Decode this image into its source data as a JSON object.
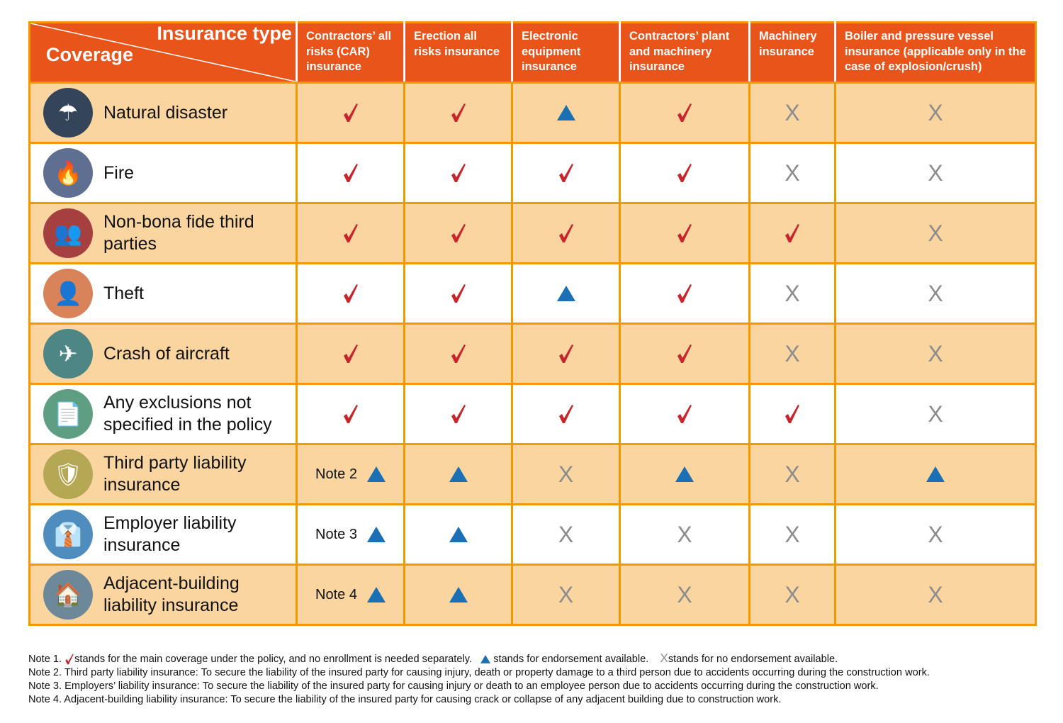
{
  "header": {
    "corner_top": "Insurance type",
    "corner_bottom": "Coverage",
    "columns": [
      "Contractors’ all risks (CAR) insurance",
      "Erection all risks insurance",
      "Electronic equipment insurance",
      "Contractors’ plant and machinery insurance",
      "Machinery insurance",
      "Boiler and pressure vessel insurance (applicable only in the case of explosion/crush)"
    ]
  },
  "colors": {
    "header": "#E8541A",
    "border": "#F39800",
    "row_fill": "#FAD5A0",
    "check": "#C8262C",
    "triangle": "#1A6FB5",
    "x": "#8C8C8C"
  },
  "x_glyph": "X",
  "rows": [
    {
      "label": "Natural disaster",
      "icon": "umbrella-storm-icon",
      "icon_color": "#34455A",
      "glyph": "☂",
      "cells": [
        "check",
        "check",
        "tri",
        "check",
        "x",
        "x"
      ]
    },
    {
      "label": "Fire",
      "icon": "fire-hands-icon",
      "icon_color": "#5F6F92",
      "glyph": "🔥",
      "cells": [
        "check",
        "check",
        "check",
        "check",
        "x",
        "x"
      ]
    },
    {
      "label": "Non-bona fide third parties",
      "icon": "elderly-couple-icon",
      "icon_color": "#A64040",
      "glyph": "👥",
      "cells": [
        "check",
        "check",
        "check",
        "check",
        "check",
        "x"
      ]
    },
    {
      "label": "Theft",
      "icon": "thief-icon",
      "icon_color": "#D9835A",
      "glyph": "👤",
      "cells": [
        "check",
        "check",
        "tri",
        "check",
        "x",
        "x"
      ]
    },
    {
      "label": "Crash of aircraft",
      "icon": "airplane-hand-icon",
      "icon_color": "#4E8585",
      "glyph": "✈",
      "cells": [
        "check",
        "check",
        "check",
        "check",
        "x",
        "x"
      ]
    },
    {
      "label": "Any exclusions not specified in the policy",
      "icon": "policy-document-icon",
      "icon_color": "#5E9E83",
      "glyph": "📄",
      "cells": [
        "check",
        "check",
        "check",
        "check",
        "check",
        "x"
      ]
    },
    {
      "label": "Third party liability insurance",
      "icon": "shield-people-icon",
      "icon_color": "#B5A855",
      "glyph": "🛡",
      "note": "Note 2",
      "cells": [
        "tri",
        "tri",
        "x",
        "tri",
        "x",
        "tri"
      ]
    },
    {
      "label": "Employer liability insurance",
      "icon": "employee-icon",
      "icon_color": "#4F8DBF",
      "glyph": "👔",
      "note": "Note 3",
      "cells": [
        "tri",
        "tri",
        "x",
        "x",
        "x",
        "x"
      ]
    },
    {
      "label": "Adjacent-building liability insurance",
      "icon": "buildings-hands-icon",
      "icon_color": "#6C8899",
      "glyph": "🏠",
      "note": "Note 4",
      "cells": [
        "tri",
        "tri",
        "x",
        "x",
        "x",
        "x"
      ]
    }
  ],
  "notes": {
    "n1_prefix": "Note 1.",
    "n1_check": "stands for the main coverage under the policy, and no enrollment is needed separately.",
    "n1_tri": "stands for endorsement available.",
    "n1_x": "stands for no endorsement available.",
    "n2": "Note 2. Third party liability insurance: To secure the liability of the insured party for causing injury, death or property damage to a third person due to accidents occurring during the construction work.",
    "n3": "Note 3. Employers’ liability insurance: To secure the liability of the insured party for causing injury or death to an employee person due to accidents occurring during the construction work.",
    "n4": "Note 4. Adjacent-building liability insurance: To secure the liability of the insured party for causing crack or collapse of any adjacent building due to construction work."
  }
}
